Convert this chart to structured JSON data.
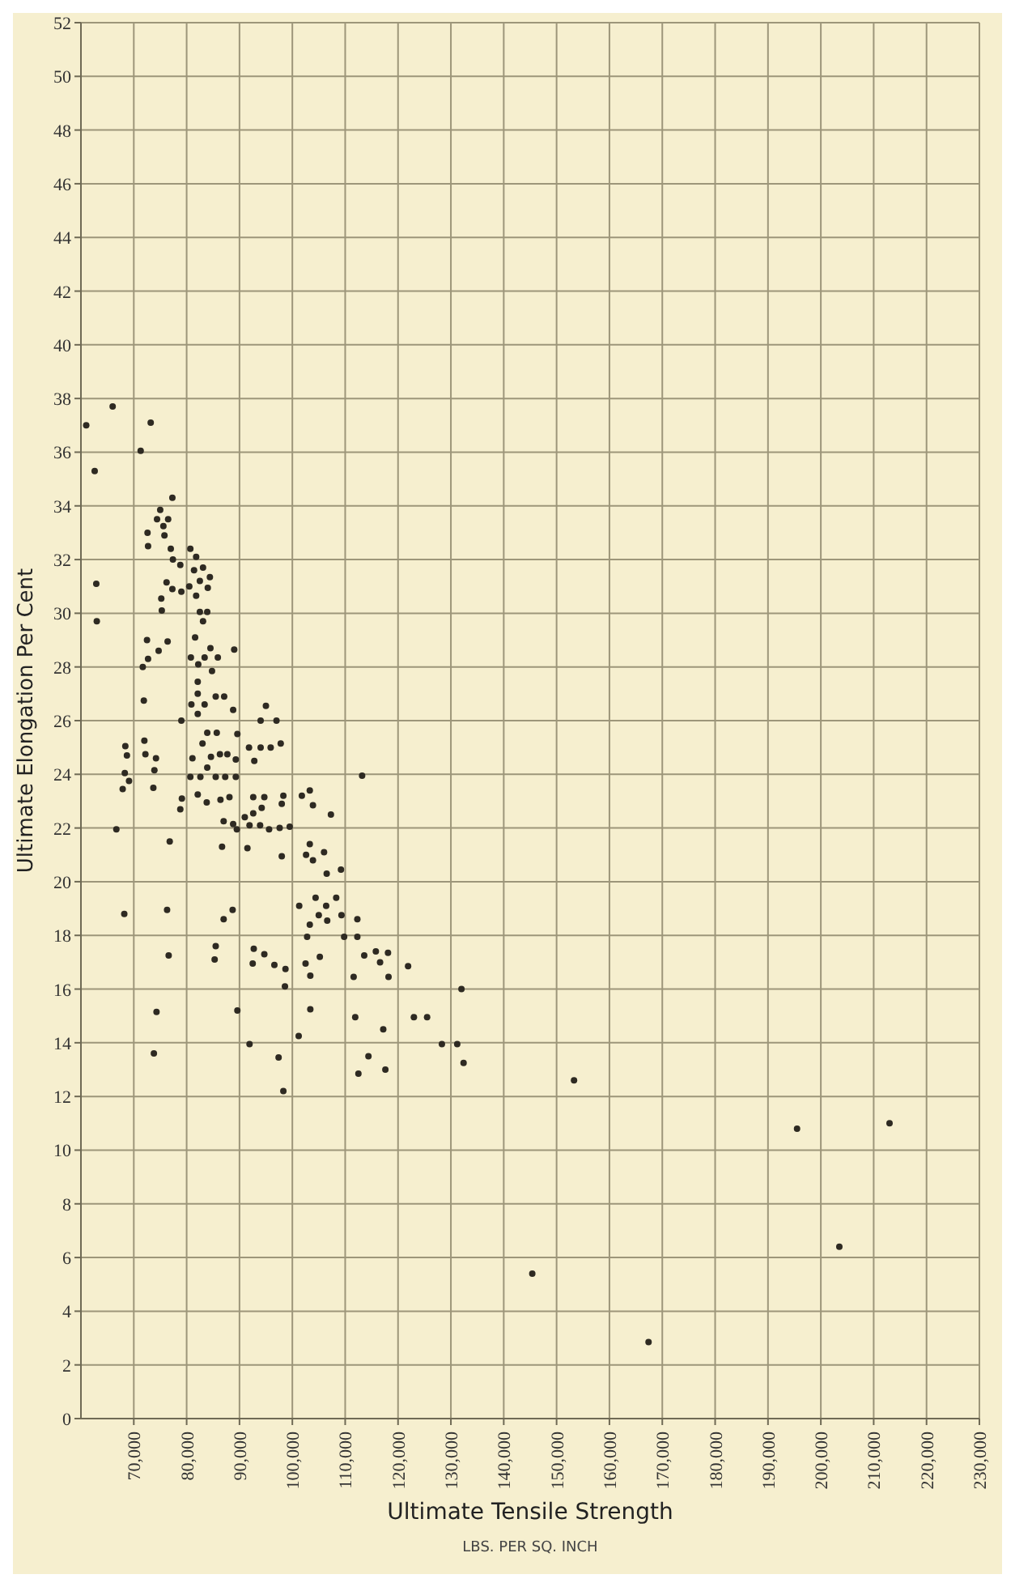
{
  "chart_data": {
    "type": "scatter",
    "xlabel": "Ultimate Tensile Strength",
    "ylabel": "Ultimate Elongation Per Cent",
    "annotations": [
      "LBS. PER SQ. INCH"
    ],
    "xlim": [
      60000,
      230000
    ],
    "xticks": [
      {
        "value": 70000,
        "label": "70,000"
      },
      {
        "value": 80000,
        "label": "80,000"
      },
      {
        "value": 90000,
        "label": "90,000"
      },
      {
        "value": 100000,
        "label": "100,000"
      },
      {
        "value": 110000,
        "label": "110,000"
      },
      {
        "value": 120000,
        "label": "120,000"
      },
      {
        "value": 130000,
        "label": "130,000"
      },
      {
        "value": 140000,
        "label": "140,000"
      },
      {
        "value": 150000,
        "label": "150,000"
      },
      {
        "value": 160000,
        "label": "160,000"
      },
      {
        "value": 170000,
        "label": "170,000"
      },
      {
        "value": 180000,
        "label": "180,000"
      },
      {
        "value": 190000,
        "label": "190,000"
      },
      {
        "value": 200000,
        "label": "200,000"
      },
      {
        "value": 210000,
        "label": "210,000"
      },
      {
        "value": 220000,
        "label": "220,000"
      },
      {
        "value": 230000,
        "label": "230,000"
      }
    ],
    "ylim": [
      0,
      52
    ],
    "yticks": [
      0,
      2,
      4,
      6,
      8,
      10,
      12,
      14,
      16,
      18,
      20,
      22,
      24,
      26,
      28,
      30,
      32,
      34,
      36,
      38,
      40,
      42,
      44,
      46,
      48,
      50,
      52
    ],
    "grid": true,
    "marker": "circle",
    "series": [
      {
        "color": "#2e2a22",
        "x": [
          66000,
          73200,
          71300,
          62600,
          61000,
          77300,
          75000,
          74400,
          76500,
          75600,
          72600,
          75800,
          72700,
          77000,
          80700,
          77400,
          81800,
          78800,
          83100,
          81400,
          84400,
          76200,
          82500,
          80500,
          84000,
          77300,
          79000,
          81800,
          75200,
          62900,
          63000,
          75300,
          82500,
          83900,
          83100,
          72500,
          76400,
          74700,
          72700,
          81600,
          80800,
          83400,
          85900,
          84500,
          89000,
          71700,
          82200,
          84800,
          82100,
          82100,
          85500,
          87100,
          71900,
          80900,
          83400,
          79000,
          82100,
          88800,
          95000,
          94000,
          97000,
          83900,
          85700,
          89600,
          72000,
          83000,
          68400,
          91800,
          94000,
          95900,
          97800,
          68700,
          72200,
          74200,
          81100,
          84600,
          86300,
          87700,
          89300,
          92800,
          83900,
          68300,
          73900,
          80700,
          82600,
          85500,
          87300,
          89300,
          69100,
          67900,
          73700,
          79100,
          82100,
          83800,
          86400,
          88100,
          92600,
          94700,
          98300,
          101800,
          103300,
          103900,
          78800,
          98000,
          91000,
          92600,
          94200,
          87000,
          88800,
          89500,
          91900,
          93900,
          95600,
          97600,
          99500,
          66700,
          76800,
          86700,
          91500,
          103300,
          102600,
          103900,
          98000,
          101300,
          104400,
          68200,
          76300,
          88700,
          87000,
          103300,
          102800,
          85500,
          85300,
          76600,
          92700,
          94700,
          92500,
          96600,
          98700,
          102500,
          103400,
          98600,
          74300,
          89600,
          103400,
          101200,
          91900,
          73800,
          97400,
          98300,
          113200,
          107300,
          106000,
          106500,
          109200,
          108300,
          106400,
          105000,
          109300,
          106600,
          112300,
          109800,
          112300,
          113600,
          115800,
          118100,
          116600,
          121900,
          105200,
          111600,
          118200,
          132000,
          111900,
          123000,
          125500,
          117200,
          128300,
          131200,
          114400,
          132400,
          117600,
          112500,
          153300,
          195500,
          213000,
          203500,
          145400,
          167400
        ],
        "values": [
          37.7,
          37.1,
          36.05,
          35.3,
          37,
          34.3,
          33.85,
          33.5,
          33.5,
          33.25,
          33.0,
          32.9,
          32.5,
          32.4,
          32.4,
          32.0,
          32.1,
          31.8,
          31.7,
          31.6,
          31.35,
          31.15,
          31.2,
          31.0,
          30.95,
          30.9,
          30.8,
          30.65,
          30.55,
          31.1,
          29.7,
          30.1,
          30.05,
          30.05,
          29.7,
          29.0,
          28.95,
          28.6,
          28.3,
          29.1,
          28.35,
          28.35,
          28.35,
          28.7,
          28.65,
          28.0,
          28.1,
          27.85,
          27.45,
          27.0,
          26.9,
          26.9,
          26.75,
          26.6,
          26.6,
          26.0,
          26.25,
          26.4,
          26.55,
          26.0,
          26.0,
          25.55,
          25.55,
          25.5,
          25.25,
          25.15,
          25.05,
          25.0,
          25.0,
          25.0,
          25.15,
          24.7,
          24.75,
          24.6,
          24.6,
          24.65,
          24.75,
          24.75,
          24.55,
          24.5,
          24.25,
          24.05,
          24.15,
          23.9,
          23.9,
          23.9,
          23.9,
          23.9,
          23.75,
          23.45,
          23.5,
          23.1,
          23.25,
          22.95,
          23.05,
          23.15,
          23.15,
          23.15,
          23.2,
          23.2,
          23.4,
          22.85,
          22.7,
          22.9,
          22.4,
          22.55,
          22.75,
          22.25,
          22.15,
          21.95,
          22.1,
          22.1,
          21.95,
          22.0,
          22.05,
          21.95,
          21.5,
          21.3,
          21.25,
          21.4,
          21.0,
          20.8,
          20.95,
          19.1,
          19.4,
          18.8,
          18.95,
          18.95,
          18.6,
          18.4,
          17.95,
          17.6,
          17.1,
          17.25,
          17.5,
          17.3,
          16.95,
          16.9,
          16.75,
          16.95,
          16.5,
          16.1,
          15.15,
          15.2,
          15.25,
          14.25,
          13.95,
          13.6,
          13.45,
          12.2,
          23.95,
          22.5,
          21.1,
          20.3,
          20.45,
          19.4,
          19.1,
          18.75,
          18.75,
          18.55,
          18.6,
          17.95,
          17.95,
          17.25,
          17.4,
          17.35,
          17.0,
          16.85,
          17.2,
          16.45,
          16.45,
          16.0,
          14.95,
          14.95,
          14.95,
          14.5,
          13.95,
          13.95,
          13.5,
          13.25,
          13.0,
          12.85,
          12.6,
          10.8,
          11.0,
          6.4,
          5.4,
          2.85
        ]
      }
    ]
  }
}
